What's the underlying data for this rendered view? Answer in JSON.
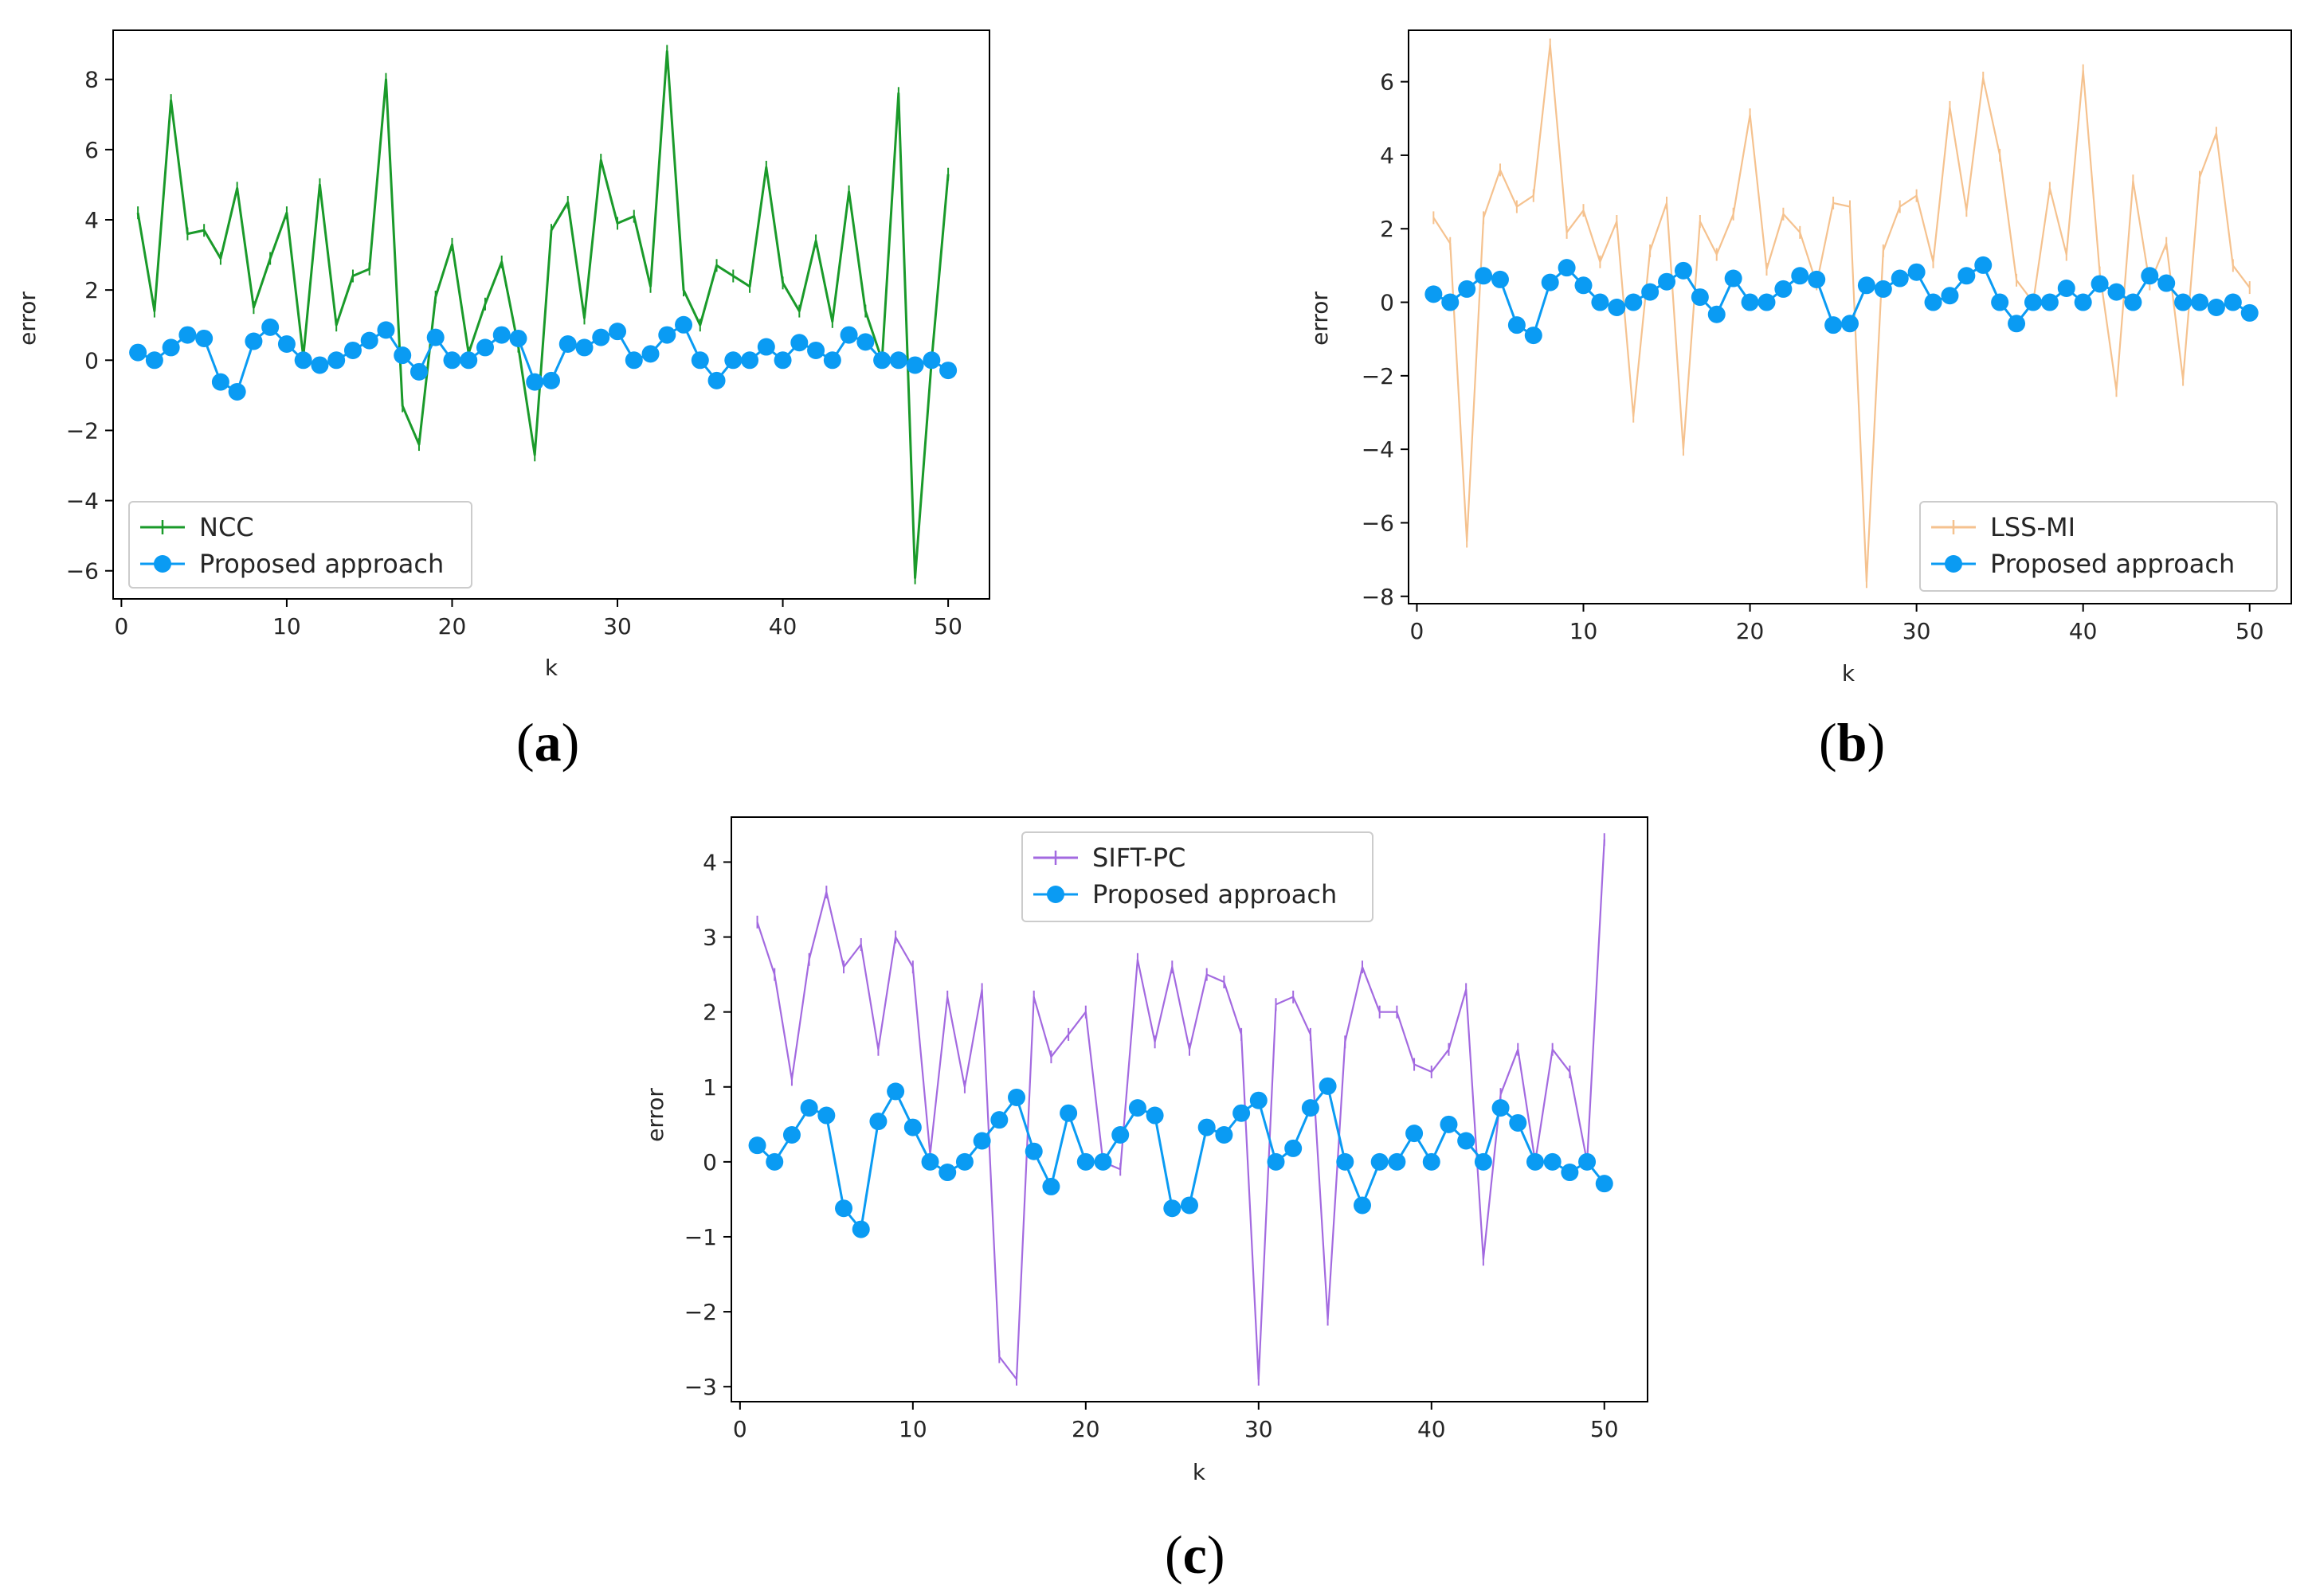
{
  "chart_data": [
    {
      "type": "line",
      "panel_label": {
        "open": "(",
        "letter": "a",
        "close": ")"
      },
      "title": "",
      "xlabel": "k",
      "ylabel": "error",
      "xlim": [
        -0.5,
        52.5
      ],
      "ylim": [
        -6.8,
        9.4
      ],
      "xticks": [
        0,
        10,
        20,
        30,
        40,
        50
      ],
      "yticks": [
        -6,
        -4,
        -2,
        0,
        2,
        4,
        6,
        8
      ],
      "legend_position": "lower-left",
      "series": [
        {
          "name": "NCC",
          "color": "#1a9a2a",
          "marker": "plus",
          "x": [
            1,
            2,
            3,
            4,
            5,
            6,
            7,
            8,
            9,
            10,
            11,
            12,
            13,
            14,
            15,
            16,
            17,
            18,
            19,
            20,
            21,
            22,
            23,
            24,
            25,
            26,
            27,
            28,
            29,
            30,
            31,
            32,
            33,
            34,
            35,
            36,
            37,
            38,
            39,
            40,
            41,
            42,
            43,
            44,
            45,
            46,
            47,
            48,
            49,
            50
          ],
          "values": [
            4.2,
            1.4,
            7.4,
            3.6,
            3.7,
            2.9,
            4.9,
            1.5,
            2.9,
            4.2,
            0.1,
            5.0,
            1.0,
            2.4,
            2.6,
            8.0,
            -1.3,
            -2.4,
            1.8,
            3.3,
            0.2,
            1.6,
            2.8,
            0.4,
            -2.7,
            3.7,
            4.5,
            1.2,
            5.7,
            3.9,
            4.1,
            2.1,
            8.8,
            2.0,
            1.0,
            2.7,
            2.4,
            2.1,
            5.5,
            2.2,
            1.4,
            3.4,
            1.1,
            4.8,
            1.4,
            0.0,
            7.6,
            -6.2,
            0.0,
            5.3
          ]
        },
        {
          "name": "Proposed approach",
          "color": "#0a9bf3",
          "marker": "circle",
          "x": [
            1,
            2,
            3,
            4,
            5,
            6,
            7,
            8,
            9,
            10,
            11,
            12,
            13,
            14,
            15,
            16,
            17,
            18,
            19,
            20,
            21,
            22,
            23,
            24,
            25,
            26,
            27,
            28,
            29,
            30,
            31,
            32,
            33,
            34,
            35,
            36,
            37,
            38,
            39,
            40,
            41,
            42,
            43,
            44,
            45,
            46,
            47,
            48,
            49,
            50
          ],
          "values": [
            0.22,
            0.0,
            0.36,
            0.72,
            0.62,
            -0.62,
            -0.9,
            0.54,
            0.94,
            0.46,
            0.0,
            -0.14,
            0.0,
            0.28,
            0.56,
            0.86,
            0.14,
            -0.33,
            0.65,
            0.0,
            0.0,
            0.36,
            0.72,
            0.62,
            -0.62,
            -0.58,
            0.46,
            0.36,
            0.65,
            0.82,
            0.0,
            0.18,
            0.72,
            1.01,
            0.0,
            -0.58,
            0.0,
            0.0,
            0.38,
            0.0,
            0.5,
            0.28,
            0.0,
            0.72,
            0.52,
            0.0,
            0.0,
            -0.14,
            0.0,
            -0.29
          ]
        }
      ]
    },
    {
      "type": "line",
      "panel_label": {
        "open": "(",
        "letter": "b",
        "close": ")"
      },
      "title": "",
      "xlabel": "k",
      "ylabel": "error",
      "xlim": [
        -0.5,
        52.5
      ],
      "ylim": [
        -8.2,
        7.4
      ],
      "xticks": [
        0,
        10,
        20,
        30,
        40,
        50
      ],
      "yticks": [
        -8,
        -6,
        -4,
        -2,
        0,
        2,
        4,
        6
      ],
      "legend_position": "lower-right",
      "series": [
        {
          "name": "LSS-MI",
          "color": "#f5c28f",
          "marker": "plus",
          "x": [
            1,
            2,
            3,
            4,
            5,
            6,
            7,
            8,
            9,
            10,
            11,
            12,
            13,
            14,
            15,
            16,
            17,
            18,
            19,
            20,
            21,
            22,
            23,
            24,
            25,
            26,
            27,
            28,
            29,
            30,
            31,
            32,
            33,
            34,
            35,
            36,
            37,
            38,
            39,
            40,
            41,
            42,
            43,
            44,
            45,
            46,
            47,
            48,
            49,
            50
          ],
          "values": [
            2.3,
            1.6,
            -6.5,
            2.3,
            3.6,
            2.6,
            2.9,
            7.0,
            1.9,
            2.5,
            1.1,
            2.2,
            -3.1,
            1.4,
            2.7,
            -4.0,
            2.2,
            1.3,
            2.4,
            5.1,
            0.9,
            2.4,
            1.9,
            0.5,
            2.7,
            2.6,
            -7.6,
            1.4,
            2.6,
            2.9,
            1.1,
            5.3,
            2.5,
            6.1,
            4.0,
            0.6,
            0.0,
            3.1,
            1.3,
            6.3,
            0.8,
            -2.4,
            3.3,
            0.5,
            1.6,
            -2.1,
            3.4,
            4.6,
            1.0,
            0.4
          ]
        },
        {
          "name": "Proposed  approach",
          "color": "#0a9bf3",
          "marker": "circle",
          "x": [
            1,
            2,
            3,
            4,
            5,
            6,
            7,
            8,
            9,
            10,
            11,
            12,
            13,
            14,
            15,
            16,
            17,
            18,
            19,
            20,
            21,
            22,
            23,
            24,
            25,
            26,
            27,
            28,
            29,
            30,
            31,
            32,
            33,
            34,
            35,
            36,
            37,
            38,
            39,
            40,
            41,
            42,
            43,
            44,
            45,
            46,
            47,
            48,
            49,
            50
          ],
          "values": [
            0.22,
            0.0,
            0.36,
            0.72,
            0.62,
            -0.62,
            -0.9,
            0.54,
            0.94,
            0.46,
            0.0,
            -0.14,
            0.0,
            0.28,
            0.56,
            0.86,
            0.14,
            -0.33,
            0.65,
            0.0,
            0.0,
            0.36,
            0.72,
            0.62,
            -0.62,
            -0.58,
            0.46,
            0.36,
            0.65,
            0.82,
            0.0,
            0.18,
            0.72,
            1.01,
            0.0,
            -0.58,
            0.0,
            0.0,
            0.38,
            0.0,
            0.5,
            0.28,
            0.0,
            0.72,
            0.52,
            0.0,
            0.0,
            -0.14,
            0.0,
            -0.29
          ]
        }
      ]
    },
    {
      "type": "line",
      "panel_label": {
        "open": "(",
        "letter": "c",
        "close": ")"
      },
      "title": "",
      "xlabel": "k",
      "ylabel": "error",
      "xlim": [
        -0.5,
        52.5
      ],
      "ylim": [
        -3.2,
        4.6
      ],
      "xticks": [
        0,
        10,
        20,
        30,
        40,
        50
      ],
      "yticks": [
        -3,
        -2,
        -1,
        0,
        1,
        2,
        3,
        4
      ],
      "legend_position": "top-center",
      "series": [
        {
          "name": "SIFT-PC",
          "color": "#a36ae0",
          "marker": "plus",
          "x": [
            1,
            2,
            3,
            4,
            5,
            6,
            7,
            8,
            9,
            10,
            11,
            12,
            13,
            14,
            15,
            16,
            17,
            18,
            19,
            20,
            21,
            22,
            23,
            24,
            25,
            26,
            27,
            28,
            29,
            30,
            31,
            32,
            33,
            34,
            35,
            36,
            37,
            38,
            39,
            40,
            41,
            42,
            43,
            44,
            45,
            46,
            47,
            48,
            49,
            50
          ],
          "values": [
            3.2,
            2.5,
            1.1,
            2.7,
            3.6,
            2.6,
            2.9,
            1.5,
            3.0,
            2.6,
            0.1,
            2.2,
            1.0,
            2.3,
            -2.6,
            -2.9,
            2.2,
            1.4,
            1.7,
            2.0,
            0.0,
            -0.1,
            2.7,
            1.6,
            2.6,
            1.5,
            2.5,
            2.4,
            1.7,
            -2.9,
            2.1,
            2.2,
            1.7,
            -2.1,
            1.6,
            2.6,
            2.0,
            2.0,
            1.3,
            1.2,
            1.5,
            2.3,
            -1.3,
            0.9,
            1.5,
            0.0,
            1.5,
            1.2,
            0.0,
            4.3
          ]
        },
        {
          "name": "Proposed approach",
          "color": "#0a9bf3",
          "marker": "circle",
          "x": [
            1,
            2,
            3,
            4,
            5,
            6,
            7,
            8,
            9,
            10,
            11,
            12,
            13,
            14,
            15,
            16,
            17,
            18,
            19,
            20,
            21,
            22,
            23,
            24,
            25,
            26,
            27,
            28,
            29,
            30,
            31,
            32,
            33,
            34,
            35,
            36,
            37,
            38,
            39,
            40,
            41,
            42,
            43,
            44,
            45,
            46,
            47,
            48,
            49,
            50
          ],
          "values": [
            0.22,
            0.0,
            0.36,
            0.72,
            0.62,
            -0.62,
            -0.9,
            0.54,
            0.94,
            0.46,
            0.0,
            -0.14,
            0.0,
            0.28,
            0.56,
            0.86,
            0.14,
            -0.33,
            0.65,
            0.0,
            0.0,
            0.36,
            0.72,
            0.62,
            -0.62,
            -0.58,
            0.46,
            0.36,
            0.65,
            0.82,
            0.0,
            0.18,
            0.72,
            1.01,
            0.0,
            -0.58,
            0.0,
            0.0,
            0.38,
            0.0,
            0.5,
            0.28,
            0.0,
            0.72,
            0.52,
            0.0,
            0.0,
            -0.14,
            0.0,
            -0.29
          ]
        }
      ]
    }
  ]
}
